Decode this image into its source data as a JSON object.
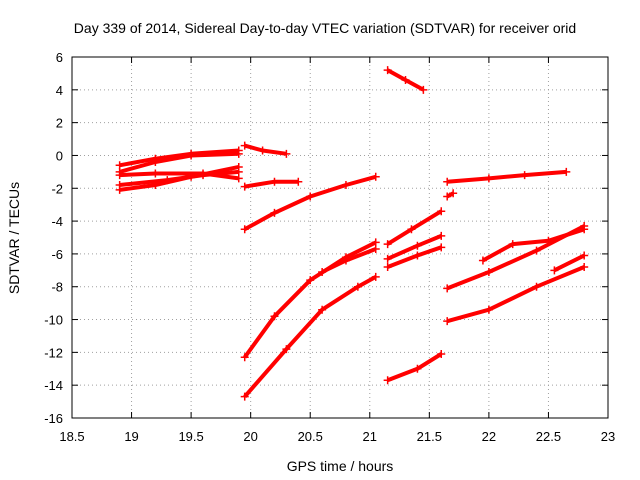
{
  "chart_data": {
    "type": "scatter",
    "title": "Day 339 of 2014, Sidereal Day-to-day VTEC variation (SDTVAR) for receiver orid",
    "xlabel": "GPS time / hours",
    "ylabel": "SDTVAR / TECUs",
    "xlim": [
      18.5,
      23
    ],
    "ylim": [
      -16,
      6
    ],
    "xticks": [
      18.5,
      19,
      19.5,
      20,
      20.5,
      21,
      21.5,
      22,
      22.5,
      23
    ],
    "xtick_labels": [
      "18.5",
      "19",
      "19.5",
      "20",
      "20.5",
      "21",
      "21.5",
      "22",
      "22.5",
      "23"
    ],
    "yticks": [
      -16,
      -14,
      -12,
      -10,
      -8,
      -6,
      -4,
      -2,
      0,
      2,
      4,
      6
    ],
    "ytick_labels": [
      "-16",
      "-14",
      "-12",
      "-10",
      "-8",
      "-6",
      "-4",
      "-2",
      "0",
      "2",
      "4",
      "6"
    ],
    "grid": true,
    "marker": "plus",
    "color": "#ff0000",
    "series": [
      {
        "x": [
          18.9,
          19.2,
          19.5,
          19.9
        ],
        "y": [
          -0.6,
          -0.2,
          0.1,
          0.3
        ]
      },
      {
        "x": [
          18.9,
          19.2,
          19.5,
          19.9
        ],
        "y": [
          -1.0,
          -0.4,
          0.0,
          0.1
        ]
      },
      {
        "x": [
          18.9,
          19.2,
          19.6,
          19.9
        ],
        "y": [
          -1.2,
          -1.1,
          -1.1,
          -1.4
        ]
      },
      {
        "x": [
          18.9,
          19.2,
          19.5,
          19.9
        ],
        "y": [
          -2.1,
          -1.8,
          -1.3,
          -0.7
        ]
      },
      {
        "x": [
          18.9,
          19.3,
          19.6,
          19.9
        ],
        "y": [
          -1.8,
          -1.5,
          -1.2,
          -1.0
        ]
      },
      {
        "x": [
          19.95,
          20.1,
          20.3
        ],
        "y": [
          0.6,
          0.3,
          0.1
        ]
      },
      {
        "x": [
          19.95,
          20.2,
          20.4
        ],
        "y": [
          -1.9,
          -1.6,
          -1.6
        ]
      },
      {
        "x": [
          19.95,
          20.2,
          20.5,
          20.8,
          21.05
        ],
        "y": [
          -4.5,
          -3.5,
          -2.5,
          -1.8,
          -1.3
        ]
      },
      {
        "x": [
          19.95,
          20.2,
          20.5,
          20.8,
          21.05
        ],
        "y": [
          -12.3,
          -9.8,
          -7.6,
          -6.2,
          -5.3
        ]
      },
      {
        "x": [
          19.95,
          20.3,
          20.6,
          20.9,
          21.05
        ],
        "y": [
          -14.7,
          -11.8,
          -9.4,
          -8.0,
          -7.4
        ]
      },
      {
        "x": [
          20.6,
          20.8,
          21.05
        ],
        "y": [
          -7.1,
          -6.4,
          -5.7
        ]
      },
      {
        "x": [
          21.15,
          21.3,
          21.45
        ],
        "y": [
          5.2,
          4.6,
          4.0
        ]
      },
      {
        "x": [
          21.15,
          21.35,
          21.6
        ],
        "y": [
          -5.4,
          -4.5,
          -3.4
        ]
      },
      {
        "x": [
          21.15,
          21.4,
          21.6
        ],
        "y": [
          -6.3,
          -5.5,
          -4.9
        ]
      },
      {
        "x": [
          21.15,
          21.4,
          21.6
        ],
        "y": [
          -6.8,
          -6.1,
          -5.6
        ]
      },
      {
        "x": [
          21.15,
          21.4,
          21.6
        ],
        "y": [
          -13.7,
          -13.0,
          -12.1
        ]
      },
      {
        "x": [
          21.65,
          21.7
        ],
        "y": [
          -2.5,
          -2.3
        ]
      },
      {
        "x": [
          21.65,
          22.0,
          22.3,
          22.65
        ],
        "y": [
          -1.6,
          -1.4,
          -1.2,
          -1.0
        ]
      },
      {
        "x": [
          21.65,
          22.0,
          22.4,
          22.8
        ],
        "y": [
          -8.1,
          -7.1,
          -5.8,
          -4.3
        ]
      },
      {
        "x": [
          21.95,
          22.2,
          22.5,
          22.8
        ],
        "y": [
          -6.4,
          -5.4,
          -5.2,
          -4.5
        ]
      },
      {
        "x": [
          21.65,
          22.0,
          22.4,
          22.8
        ],
        "y": [
          -10.1,
          -9.4,
          -8.0,
          -6.8
        ]
      },
      {
        "x": [
          22.55,
          22.8
        ],
        "y": [
          -7.0,
          -6.1
        ]
      }
    ]
  }
}
